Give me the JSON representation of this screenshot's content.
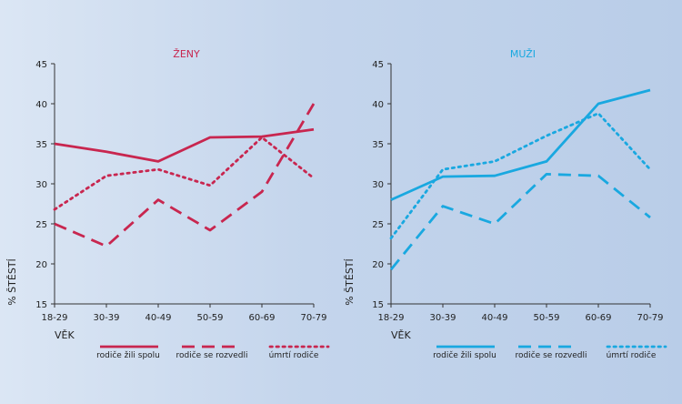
{
  "chart_data": [
    {
      "type": "line",
      "title": "ŽENY",
      "color": "#c8264f",
      "xlabel": "VĚK",
      "ylabel": "% ŠTĚSTÍ",
      "categories": [
        "18-29",
        "30-39",
        "40-49",
        "50-59",
        "60-69",
        "70-79"
      ],
      "ylim": [
        15,
        45
      ],
      "yticks": [
        15,
        20,
        25,
        30,
        35,
        40,
        45
      ],
      "grid": false,
      "legend_position": "bottom",
      "series": [
        {
          "name": "rodiče žili spolu",
          "style": "solid",
          "values": [
            35,
            34,
            32.8,
            35.8,
            35.9,
            36.8
          ]
        },
        {
          "name": "rodiče se rozvedli",
          "style": "dashed",
          "values": [
            25,
            22.2,
            28,
            24.2,
            29,
            40
          ]
        },
        {
          "name": "úmrtí rodiče",
          "style": "dotted",
          "values": [
            26.8,
            31,
            31.8,
            29.8,
            35.8,
            30.7
          ]
        }
      ]
    },
    {
      "type": "line",
      "title": "MUŽI",
      "color": "#19a8e0",
      "xlabel": "VĚK",
      "ylabel": "% ŠTĚSTÍ",
      "categories": [
        "18-29",
        "30-39",
        "40-49",
        "50-59",
        "60-69",
        "70-79"
      ],
      "ylim": [
        15,
        45
      ],
      "yticks": [
        15,
        20,
        25,
        30,
        35,
        40,
        45
      ],
      "grid": false,
      "legend_position": "bottom",
      "series": [
        {
          "name": "rodiče žili spolu",
          "style": "solid",
          "values": [
            28,
            30.9,
            31,
            32.8,
            40,
            41.7
          ]
        },
        {
          "name": "rodiče se rozvedli",
          "style": "dashed",
          "values": [
            19.3,
            27.2,
            25,
            31.2,
            31,
            25.8
          ]
        },
        {
          "name": "úmrtí rodiče",
          "style": "dotted",
          "values": [
            23.2,
            31.8,
            32.8,
            36,
            38.8,
            31.8
          ]
        }
      ]
    }
  ]
}
